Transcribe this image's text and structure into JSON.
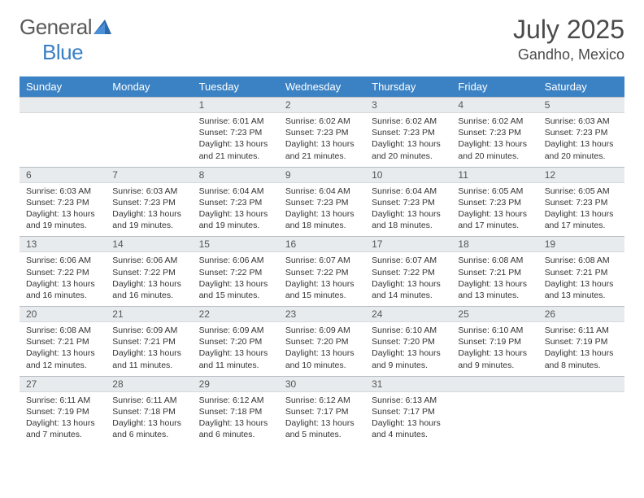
{
  "brand": {
    "part1": "General",
    "part2": "Blue"
  },
  "title": "July 2025",
  "location": "Gandho, Mexico",
  "colors": {
    "header_bg": "#3b82c4",
    "header_fg": "#ffffff",
    "daynum_bg": "#e8ebee",
    "daynum_border_top": "#b8bec4",
    "text": "#333333",
    "brand_gray": "#5a5a5a",
    "brand_blue": "#3b7fc4",
    "page_bg": "#ffffff"
  },
  "day_headers": [
    "Sunday",
    "Monday",
    "Tuesday",
    "Wednesday",
    "Thursday",
    "Friday",
    "Saturday"
  ],
  "weeks": [
    [
      {
        "n": "",
        "sr": "",
        "ss": "",
        "dl": ""
      },
      {
        "n": "",
        "sr": "",
        "ss": "",
        "dl": ""
      },
      {
        "n": "1",
        "sr": "6:01 AM",
        "ss": "7:23 PM",
        "dl": "13 hours and 21 minutes."
      },
      {
        "n": "2",
        "sr": "6:02 AM",
        "ss": "7:23 PM",
        "dl": "13 hours and 21 minutes."
      },
      {
        "n": "3",
        "sr": "6:02 AM",
        "ss": "7:23 PM",
        "dl": "13 hours and 20 minutes."
      },
      {
        "n": "4",
        "sr": "6:02 AM",
        "ss": "7:23 PM",
        "dl": "13 hours and 20 minutes."
      },
      {
        "n": "5",
        "sr": "6:03 AM",
        "ss": "7:23 PM",
        "dl": "13 hours and 20 minutes."
      }
    ],
    [
      {
        "n": "6",
        "sr": "6:03 AM",
        "ss": "7:23 PM",
        "dl": "13 hours and 19 minutes."
      },
      {
        "n": "7",
        "sr": "6:03 AM",
        "ss": "7:23 PM",
        "dl": "13 hours and 19 minutes."
      },
      {
        "n": "8",
        "sr": "6:04 AM",
        "ss": "7:23 PM",
        "dl": "13 hours and 19 minutes."
      },
      {
        "n": "9",
        "sr": "6:04 AM",
        "ss": "7:23 PM",
        "dl": "13 hours and 18 minutes."
      },
      {
        "n": "10",
        "sr": "6:04 AM",
        "ss": "7:23 PM",
        "dl": "13 hours and 18 minutes."
      },
      {
        "n": "11",
        "sr": "6:05 AM",
        "ss": "7:23 PM",
        "dl": "13 hours and 17 minutes."
      },
      {
        "n": "12",
        "sr": "6:05 AM",
        "ss": "7:23 PM",
        "dl": "13 hours and 17 minutes."
      }
    ],
    [
      {
        "n": "13",
        "sr": "6:06 AM",
        "ss": "7:22 PM",
        "dl": "13 hours and 16 minutes."
      },
      {
        "n": "14",
        "sr": "6:06 AM",
        "ss": "7:22 PM",
        "dl": "13 hours and 16 minutes."
      },
      {
        "n": "15",
        "sr": "6:06 AM",
        "ss": "7:22 PM",
        "dl": "13 hours and 15 minutes."
      },
      {
        "n": "16",
        "sr": "6:07 AM",
        "ss": "7:22 PM",
        "dl": "13 hours and 15 minutes."
      },
      {
        "n": "17",
        "sr": "6:07 AM",
        "ss": "7:22 PM",
        "dl": "13 hours and 14 minutes."
      },
      {
        "n": "18",
        "sr": "6:08 AM",
        "ss": "7:21 PM",
        "dl": "13 hours and 13 minutes."
      },
      {
        "n": "19",
        "sr": "6:08 AM",
        "ss": "7:21 PM",
        "dl": "13 hours and 13 minutes."
      }
    ],
    [
      {
        "n": "20",
        "sr": "6:08 AM",
        "ss": "7:21 PM",
        "dl": "13 hours and 12 minutes."
      },
      {
        "n": "21",
        "sr": "6:09 AM",
        "ss": "7:21 PM",
        "dl": "13 hours and 11 minutes."
      },
      {
        "n": "22",
        "sr": "6:09 AM",
        "ss": "7:20 PM",
        "dl": "13 hours and 11 minutes."
      },
      {
        "n": "23",
        "sr": "6:09 AM",
        "ss": "7:20 PM",
        "dl": "13 hours and 10 minutes."
      },
      {
        "n": "24",
        "sr": "6:10 AM",
        "ss": "7:20 PM",
        "dl": "13 hours and 9 minutes."
      },
      {
        "n": "25",
        "sr": "6:10 AM",
        "ss": "7:19 PM",
        "dl": "13 hours and 9 minutes."
      },
      {
        "n": "26",
        "sr": "6:11 AM",
        "ss": "7:19 PM",
        "dl": "13 hours and 8 minutes."
      }
    ],
    [
      {
        "n": "27",
        "sr": "6:11 AM",
        "ss": "7:19 PM",
        "dl": "13 hours and 7 minutes."
      },
      {
        "n": "28",
        "sr": "6:11 AM",
        "ss": "7:18 PM",
        "dl": "13 hours and 6 minutes."
      },
      {
        "n": "29",
        "sr": "6:12 AM",
        "ss": "7:18 PM",
        "dl": "13 hours and 6 minutes."
      },
      {
        "n": "30",
        "sr": "6:12 AM",
        "ss": "7:17 PM",
        "dl": "13 hours and 5 minutes."
      },
      {
        "n": "31",
        "sr": "6:13 AM",
        "ss": "7:17 PM",
        "dl": "13 hours and 4 minutes."
      },
      {
        "n": "",
        "sr": "",
        "ss": "",
        "dl": ""
      },
      {
        "n": "",
        "sr": "",
        "ss": "",
        "dl": ""
      }
    ]
  ],
  "labels": {
    "sunrise": "Sunrise:",
    "sunset": "Sunset:",
    "daylight": "Daylight:"
  }
}
